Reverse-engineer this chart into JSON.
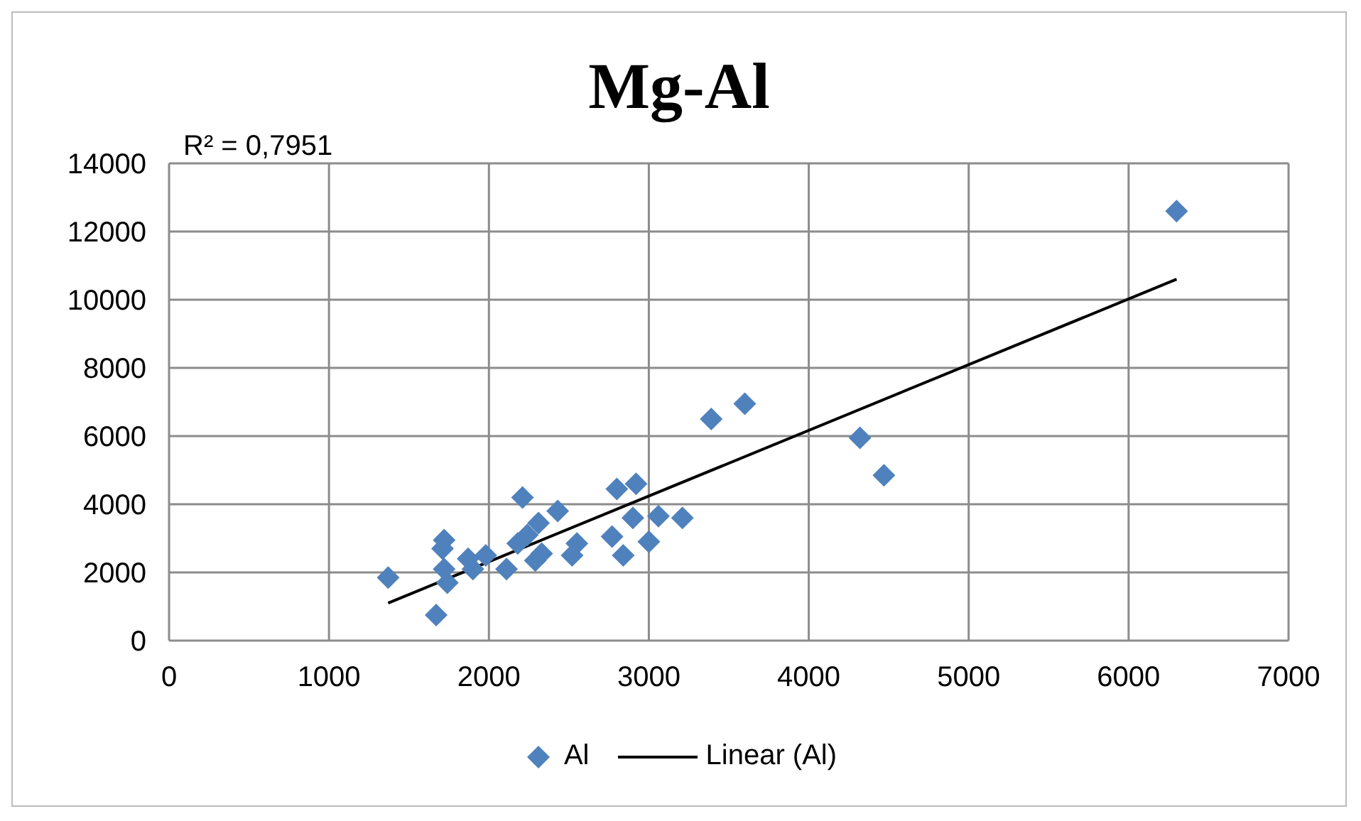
{
  "chart_data": {
    "type": "scatter",
    "title": "Mg-Al",
    "annotations": [
      "R² = 0,7951"
    ],
    "xlim": [
      0,
      7000
    ],
    "xticks": [
      0,
      1000,
      2000,
      3000,
      4000,
      5000,
      6000,
      7000
    ],
    "ylim": [
      0,
      14000
    ],
    "yticks": [
      0,
      2000,
      4000,
      6000,
      8000,
      10000,
      12000,
      14000
    ],
    "grid": true,
    "legend": "bottom",
    "series": [
      {
        "name": "Al",
        "marker": "diamond",
        "color": "#4f81bd",
        "x": [
          1370,
          1670,
          1720,
          1710,
          1720,
          1740,
          1870,
          1900,
          1980,
          2110,
          2210,
          2180,
          2240,
          2310,
          2330,
          2290,
          2430,
          2550,
          2520,
          2770,
          2840,
          2800,
          2920,
          2900,
          3060,
          3000,
          3210,
          3390,
          3600,
          4320,
          4470,
          6300
        ],
        "values": [
          1850,
          750,
          2950,
          2700,
          2100,
          1700,
          2400,
          2100,
          2500,
          2100,
          4200,
          2850,
          3100,
          3450,
          2550,
          2350,
          3800,
          2850,
          2500,
          3050,
          2500,
          4450,
          4600,
          3600,
          3650,
          2900,
          3600,
          6500,
          6950,
          5950,
          4850,
          12600
        ]
      },
      {
        "name": "Linear (Al)",
        "type": "line",
        "marker": "none",
        "color": "#000000",
        "line_style": "solid",
        "x": [
          1370,
          6300
        ],
        "values": [
          1100,
          10600
        ]
      }
    ]
  }
}
